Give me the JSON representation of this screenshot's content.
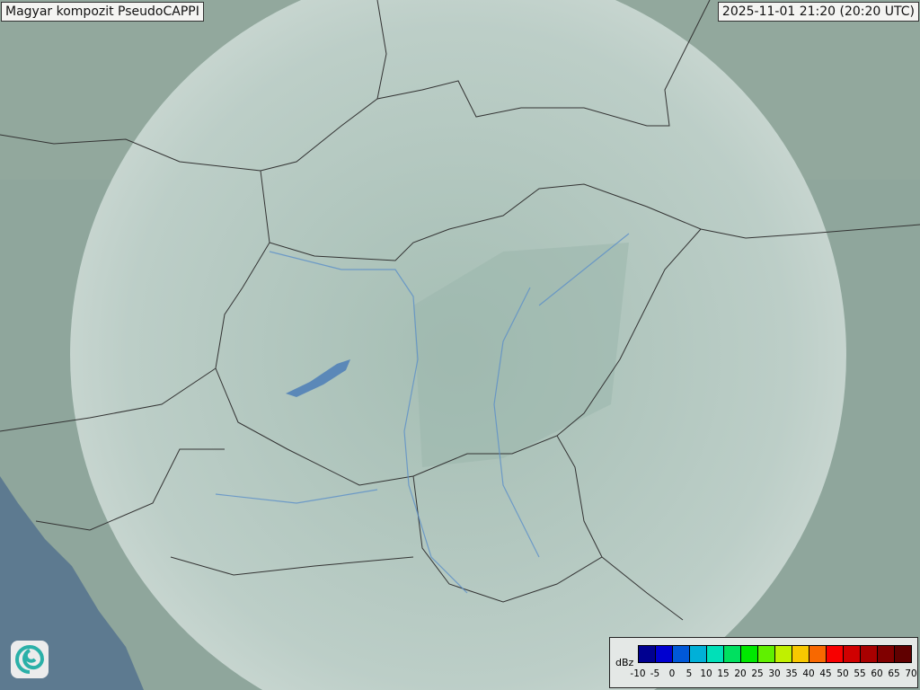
{
  "header": {
    "title": "Magyar kompozit  PseudoCAPPI",
    "timestamp": "2025-11-01 21:20 (20:20 UTC)"
  },
  "legend": {
    "unit": "dBz",
    "ticks": [
      "-10",
      "-5",
      "0",
      "5",
      "10",
      "15",
      "20",
      "25",
      "30",
      "35",
      "40",
      "45",
      "50",
      "55",
      "60",
      "65",
      "70"
    ],
    "colors": [
      "#000090",
      "#0000d0",
      "#0058d8",
      "#00b0d8",
      "#00e0b8",
      "#00e060",
      "#00e800",
      "#60f000",
      "#c0f000",
      "#f8c800",
      "#f86800",
      "#f80000",
      "#d00000",
      "#a80000",
      "#800000",
      "#600000"
    ]
  },
  "logo": {
    "icon": "swirl-logo-icon"
  },
  "map": {
    "land_color": "#8fa69c",
    "radar_coverage_color": "#c8d8d2",
    "sea_color": "#5d7a90",
    "lake_color": "#5b88b8"
  }
}
